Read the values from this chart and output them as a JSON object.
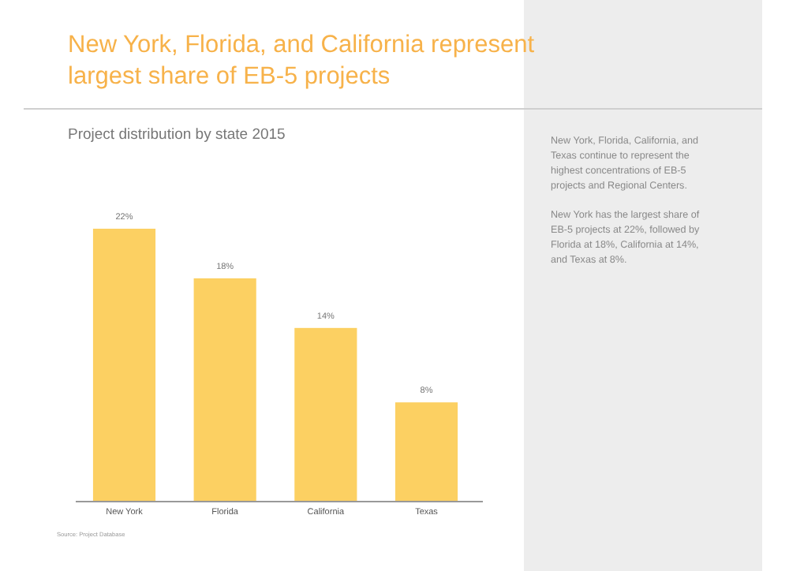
{
  "chart_data": {
    "type": "bar",
    "title": "New York, Florida, and California represent largest share of EB-5 projects",
    "subtitle": "Project distribution by state 2015",
    "categories": [
      "New York",
      "Florida",
      "California",
      "Texas"
    ],
    "values": [
      22,
      18,
      14,
      8
    ],
    "value_labels": [
      "22%",
      "18%",
      "14%",
      "8%"
    ],
    "color": "#fcd062",
    "annotations": [
      "New York, Florida, California, and Texas continue to represent the highest concentrations of EB-5 projects and Regional Centers.",
      "New York has the largest share of EB-5 projects at 22%, followed by Florida at 18%, California at 14%, and Texas at 8%.",
      "Source: Project Database"
    ]
  }
}
